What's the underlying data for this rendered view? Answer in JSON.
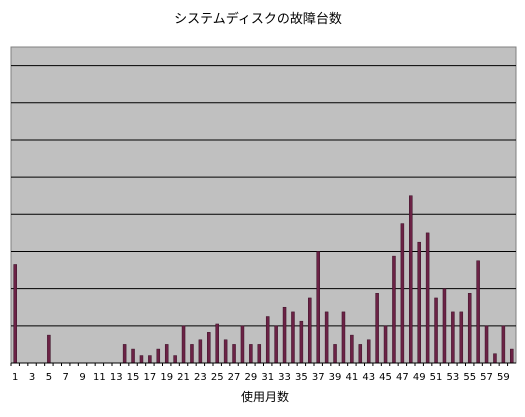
{
  "chart_data": {
    "type": "bar",
    "title": "システムディスクの故障台数",
    "xlabel": "使用月数",
    "ylabel": "",
    "ylim": [
      0,
      17
    ],
    "grid": true,
    "legend": "none",
    "x_tick_labels": [
      "1",
      "3",
      "5",
      "7",
      "9",
      "11",
      "13",
      "15",
      "17",
      "19",
      "21",
      "23",
      "25",
      "27",
      "29",
      "31",
      "33",
      "35",
      "37",
      "39",
      "41",
      "43",
      "45",
      "47",
      "49",
      "51",
      "53",
      "55",
      "57",
      "59"
    ],
    "categories": [
      1,
      2,
      3,
      4,
      5,
      6,
      7,
      8,
      9,
      10,
      11,
      12,
      13,
      14,
      15,
      16,
      17,
      18,
      19,
      20,
      21,
      22,
      23,
      24,
      25,
      26,
      27,
      28,
      29,
      30,
      31,
      32,
      33,
      34,
      35,
      36,
      37,
      38,
      39,
      40,
      41,
      42,
      43,
      44,
      45,
      46,
      47,
      48,
      49,
      50,
      51,
      52,
      53,
      54,
      55,
      56,
      57,
      58,
      59,
      60
    ],
    "values": [
      5.3,
      0,
      0,
      0,
      1.5,
      0,
      0,
      0,
      0,
      0,
      0,
      0,
      0,
      1,
      0.75,
      0.4,
      0.4,
      0.75,
      1,
      0.4,
      2,
      1,
      1.25,
      1.65,
      2.1,
      1.25,
      1,
      2,
      1,
      1,
      2.5,
      2,
      3,
      2.75,
      2.25,
      3.5,
      6,
      2.75,
      1,
      2.75,
      1.5,
      1,
      1.25,
      3.75,
      2,
      5.75,
      7.5,
      9,
      6.5,
      7,
      3.5,
      4,
      2.75,
      2.75,
      3.75,
      5.5,
      2,
      0.5,
      2,
      0.75
    ],
    "colors": {
      "bar": "#6b2245",
      "plot_bg": "#c0c0c0",
      "grid": "#000000"
    }
  }
}
